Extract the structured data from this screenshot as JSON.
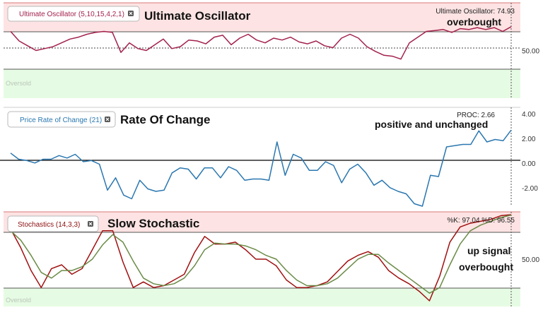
{
  "chart_data": [
    {
      "type": "line",
      "indicator_label": "Ultimate Oscillator (5,10,15,4,2,1)",
      "annotations": [
        "Ultimate Oscillator",
        "overbought"
      ],
      "readout": "Ultimate Oscillator: 74.93",
      "ylim": [
        0,
        100
      ],
      "reference_levels": {
        "overbought": 70,
        "midline": 50,
        "oversold": 30
      },
      "zone_labels": {
        "oversold": "Oversold"
      },
      "yticks": [
        {
          "value": 50,
          "label": "50.00"
        }
      ],
      "series": [
        {
          "color": "#a3214c",
          "values": [
            70,
            60,
            55,
            50,
            52,
            54,
            58,
            62,
            64,
            67,
            69,
            70,
            69,
            48,
            58,
            52,
            50,
            56,
            62,
            52,
            54,
            61,
            60,
            57,
            64,
            66,
            56,
            63,
            67,
            61,
            58,
            63,
            61,
            64,
            59,
            57,
            60,
            55,
            53,
            63,
            67,
            63,
            54,
            49,
            45,
            44,
            41,
            58,
            64,
            70,
            71,
            72,
            69,
            73,
            72,
            74,
            72,
            74,
            70,
            74.93
          ]
        }
      ]
    },
    {
      "type": "line",
      "indicator_label": "Price Rate of Change (21)",
      "annotations": [
        "Rate Of Change",
        "positive and unchanged"
      ],
      "readout": "PROC: 2.66",
      "ylim": [
        -3.5,
        4.5
      ],
      "yticks": [
        {
          "value": 4,
          "label": "4.00"
        },
        {
          "value": 2,
          "label": "2.00"
        },
        {
          "value": 0,
          "label": "0.00"
        },
        {
          "value": -2,
          "label": "-2.00"
        }
      ],
      "series": [
        {
          "color": "#2a77b0",
          "values": [
            0.8,
            0.3,
            0.2,
            0.0,
            0.3,
            0.3,
            0.6,
            0.4,
            0.7,
            0.1,
            0.2,
            -0.1,
            -2.2,
            -1.2,
            -2.6,
            -2.9,
            -1.4,
            -2.1,
            -2.3,
            -2.2,
            -0.8,
            -0.4,
            -0.5,
            -1.3,
            -0.4,
            -0.4,
            -1.2,
            -0.3,
            -0.6,
            -1.4,
            -1.3,
            -1.3,
            -1.4,
            1.7,
            -1.0,
            0.7,
            0.4,
            -0.6,
            -0.6,
            0.1,
            -0.2,
            -1.6,
            -0.5,
            -0.1,
            -0.8,
            -1.8,
            -1.4,
            -2.0,
            -2.3,
            -2.5,
            -3.3,
            -3.5,
            -1.0,
            -1.1,
            1.3,
            1.4,
            1.5,
            1.5,
            2.6,
            1.7,
            1.9,
            1.8,
            2.66
          ]
        }
      ]
    },
    {
      "type": "line",
      "indicator_label": "Stochastics (14,3,3)",
      "annotations": [
        "Slow Stochastic",
        "up signal",
        "overbought"
      ],
      "readout": "%K: 97.04 %D: 96.55",
      "ylim": [
        0,
        100
      ],
      "reference_levels": {
        "overbought": 80,
        "oversold": 20
      },
      "zone_labels": {
        "oversold": "Oversold"
      },
      "yticks": [
        {
          "value": 50,
          "label": "50.00"
        }
      ],
      "series": [
        {
          "name": "%K",
          "color": "#a01010",
          "values": [
            82,
            62,
            38,
            20,
            40,
            44,
            34,
            40,
            60,
            80,
            80,
            47,
            20,
            26,
            20,
            22,
            28,
            34,
            57,
            74,
            66,
            66,
            68,
            60,
            50,
            50,
            43,
            28,
            20,
            20,
            22,
            26,
            37,
            48,
            54,
            58,
            52,
            38,
            30,
            24,
            16,
            6,
            32,
            68,
            84,
            88,
            90,
            92,
            96,
            97.04
          ]
        },
        {
          "name": "%D",
          "color": "#6a8a46",
          "values": [
            80,
            70,
            54,
            36,
            30,
            38,
            38,
            42,
            50,
            65,
            76,
            68,
            48,
            30,
            24,
            22,
            24,
            30,
            43,
            60,
            67,
            66,
            66,
            64,
            60,
            54,
            50,
            38,
            28,
            22,
            22,
            24,
            30,
            40,
            50,
            55,
            55,
            46,
            38,
            30,
            22,
            14,
            20,
            44,
            66,
            80,
            86,
            90,
            94,
            96.55
          ]
        }
      ]
    }
  ]
}
